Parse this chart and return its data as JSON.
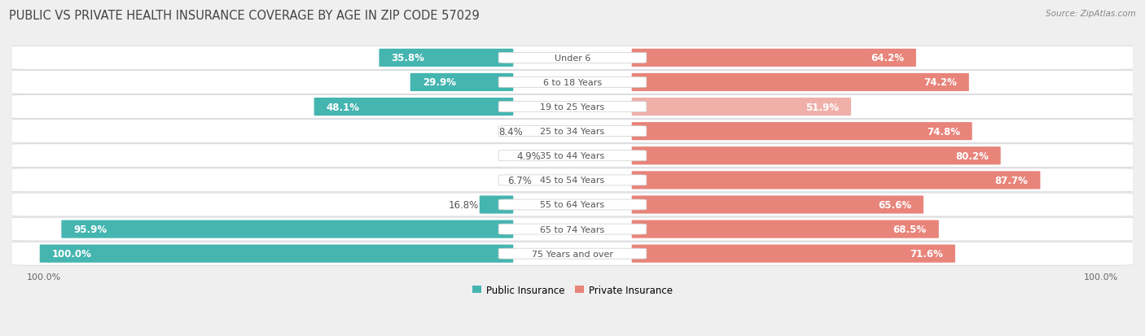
{
  "title": "PUBLIC VS PRIVATE HEALTH INSURANCE COVERAGE BY AGE IN ZIP CODE 57029",
  "source": "Source: ZipAtlas.com",
  "categories": [
    "Under 6",
    "6 to 18 Years",
    "19 to 25 Years",
    "25 to 34 Years",
    "35 to 44 Years",
    "45 to 54 Years",
    "55 to 64 Years",
    "65 to 74 Years",
    "75 Years and over"
  ],
  "public_values": [
    35.8,
    29.9,
    48.1,
    8.4,
    4.9,
    6.7,
    16.8,
    95.9,
    100.0
  ],
  "private_values": [
    64.2,
    74.2,
    51.9,
    74.8,
    80.2,
    87.7,
    65.6,
    68.5,
    71.6
  ],
  "public_color": "#45b5b0",
  "private_colors": [
    "#e8847a",
    "#e8847a",
    "#f0b0aa",
    "#e8847a",
    "#e8847a",
    "#e8847a",
    "#e8847a",
    "#e8847a",
    "#e8847a"
  ],
  "bg_color": "#efefef",
  "row_bg": "#ffffff",
  "row_border": "#d0d0d8",
  "dark_label": "#555555",
  "white_label": "#ffffff",
  "bar_height": 0.72,
  "figsize": [
    14.06,
    4.14
  ],
  "dpi": 100,
  "title_fontsize": 10.5,
  "label_fontsize": 8.5,
  "category_fontsize": 8,
  "legend_fontsize": 8.5,
  "axis_label_fontsize": 8
}
